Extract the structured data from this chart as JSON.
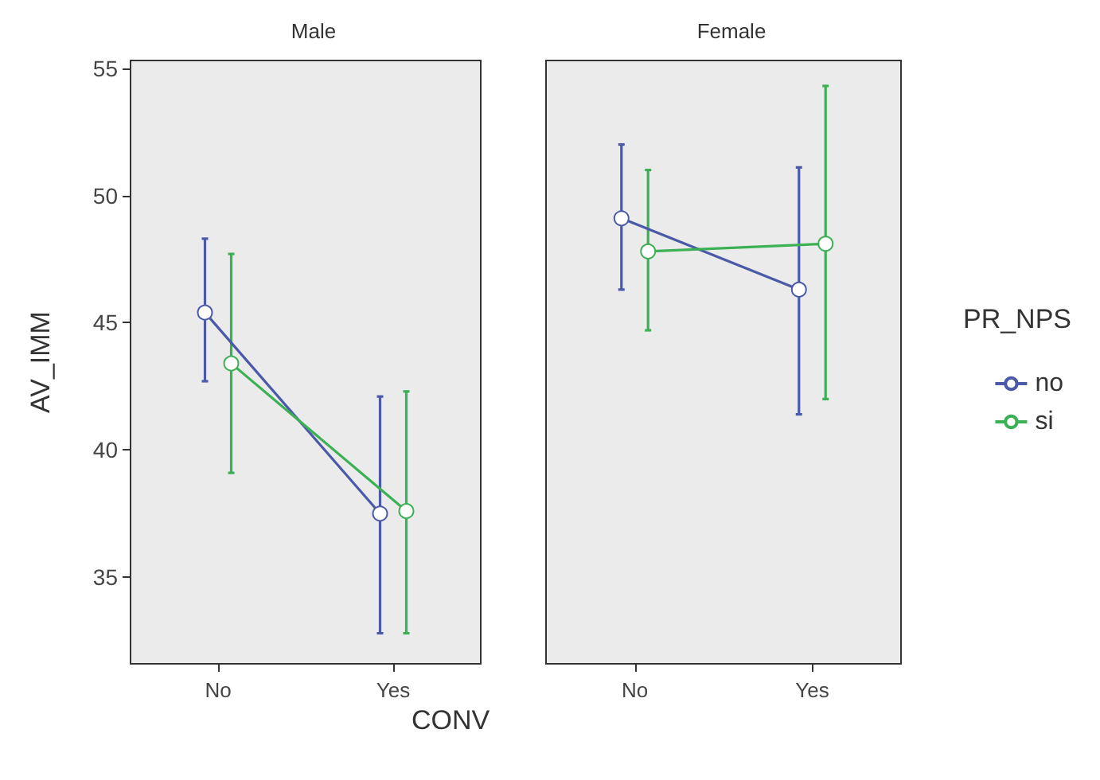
{
  "chart_data": [
    {
      "type": "line",
      "title": "Male",
      "xlabel": "CONV",
      "ylabel": "AV_IMM",
      "categories": [
        "No",
        "Yes"
      ],
      "ylim": [
        31.6,
        55.3
      ],
      "yticks": [
        35,
        40,
        45,
        50,
        55
      ],
      "grid": false,
      "legend": false,
      "marker": "circle",
      "line_style": "solid",
      "series": [
        {
          "color": "#4a5aa8",
          "values": [
            45.4,
            37.5
          ],
          "errors": [
            [
              42.7,
              48.3
            ],
            [
              32.8,
              42.1
            ]
          ]
        },
        {
          "color": "#3cb054",
          "values": [
            43.4,
            37.6
          ],
          "errors": [
            [
              39.1,
              47.7
            ],
            [
              32.8,
              42.3
            ]
          ]
        }
      ]
    },
    {
      "type": "line",
      "title": "Female",
      "legend_title": "PR_NPS",
      "categories": [
        "No",
        "Yes"
      ],
      "ylim": [
        31.6,
        55.3
      ],
      "yticks": [
        35,
        40,
        45,
        50,
        55
      ],
      "tick_labels": "x",
      "grid": false,
      "legend": "right",
      "marker": "circle",
      "line_style": "solid",
      "series": [
        {
          "name": "no",
          "color": "#4a5aa8",
          "values": [
            49.1,
            46.3
          ],
          "errors": [
            [
              46.3,
              52.0
            ],
            [
              41.4,
              51.1
            ]
          ]
        },
        {
          "name": "si",
          "color": "#3cb054",
          "values": [
            47.8,
            48.1
          ],
          "errors": [
            [
              44.7,
              51.0
            ],
            [
              42.0,
              54.3
            ]
          ]
        }
      ]
    }
  ]
}
